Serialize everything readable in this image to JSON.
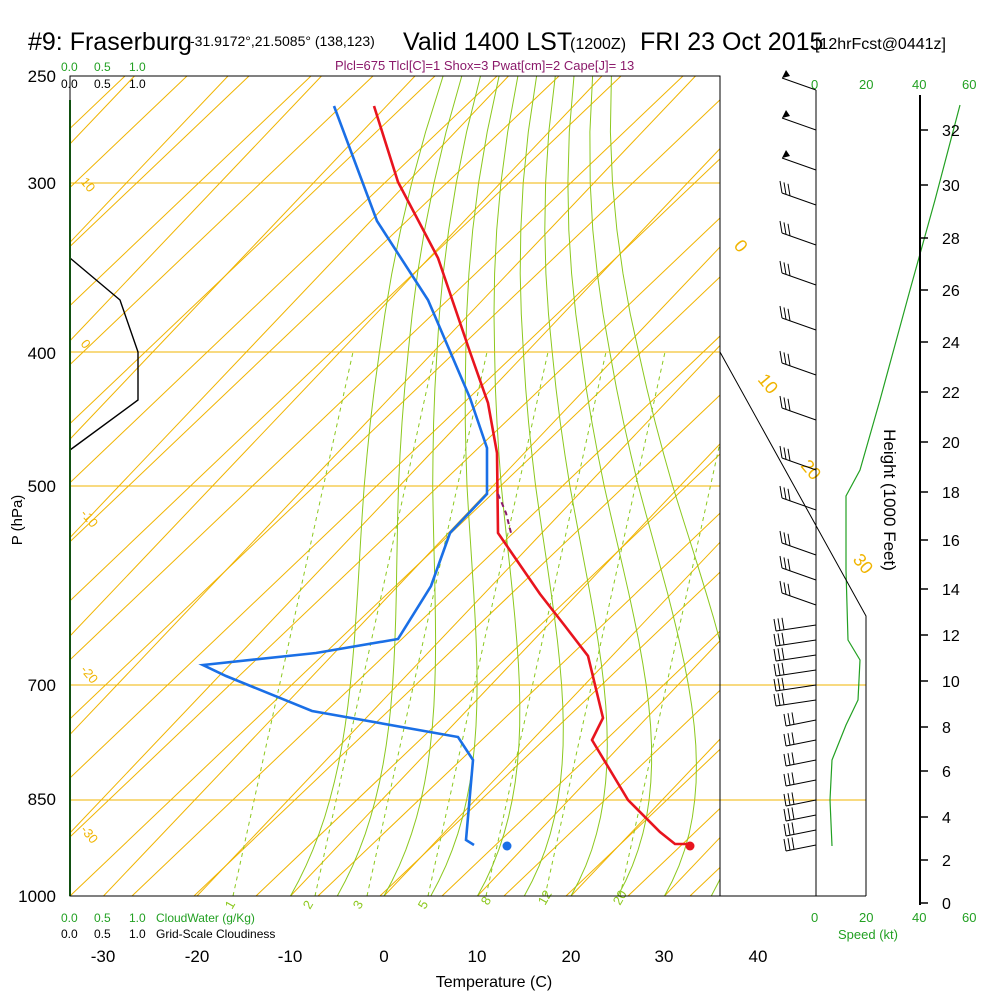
{
  "header": {
    "station": "#9: Fraserburg",
    "coords": "-31.9172°,21.5085° (138,123)",
    "valid": "Valid 1400 LST",
    "zulu": "(1200Z)",
    "date": "FRI 23 Oct 2015",
    "forecast": "[12hrFcst@0441z]",
    "indices": "Plcl=675 Tlcl[C]=1 Shox=3 Pwat[cm]=2 Cape[J]= 13"
  },
  "colors": {
    "temperature": "#e8141e",
    "dewpoint": "#1a6fe6",
    "isotherm": "#f0b400",
    "dry_adiabat": "#f0b400",
    "moist_adiabat": "#8cc81e",
    "mixing_ratio": "#8cc81e",
    "cloud": "#000000",
    "height": "#000000",
    "speed_axis": "#22a022",
    "parcel": "#8b1a6b",
    "indices_text": "#8b1a6b"
  },
  "labels": {
    "x_axis_title": "Temperature (C)",
    "y_axis_title": "P (hPa)",
    "height_axis_title": "Height (1000 Feet)",
    "cloudwater_label": "CloudWater (g/Kg)",
    "cloudiness_label": "Grid-Scale Cloudiness",
    "speed_label": "Speed (kt)",
    "cloudwater_ticks": [
      "0.0",
      "0.5",
      "1.0"
    ],
    "cloudiness_ticks": [
      "0.0",
      "0.5",
      "1.0"
    ],
    "speed_ticks": [
      "0",
      "20",
      "40",
      "60"
    ]
  },
  "chart_data": {
    "type": "skew-t",
    "x_ticks": [
      "-30",
      "-20",
      "-10",
      "0",
      "10",
      "20",
      "30",
      "40"
    ],
    "y_ticks": [
      "250",
      "300",
      "400",
      "500",
      "700",
      "850",
      "1000"
    ],
    "height_ticks": [
      "0",
      "2",
      "4",
      "6",
      "8",
      "10",
      "12",
      "14",
      "16",
      "18",
      "20",
      "22",
      "24",
      "26",
      "28",
      "30",
      "32"
    ],
    "isotherm_labels": [
      "10",
      "0",
      "-10",
      "-20",
      "-30",
      "0",
      "10",
      "20",
      "30"
    ],
    "mixing_ratio_labels": [
      "1",
      "2",
      "3",
      "5",
      "8",
      "12",
      "20"
    ],
    "temperature_profile": [
      {
        "p": 1000,
        "t": 32.9
      },
      {
        "p": 900,
        "t": 31.5
      },
      {
        "p": 850,
        "t": 26.5
      },
      {
        "p": 800,
        "t": 22.3
      },
      {
        "p": 750,
        "t": 23.5
      },
      {
        "p": 700,
        "t": 21.5
      },
      {
        "p": 650,
        "t": 18.0
      },
      {
        "p": 600,
        "t": 13.5
      },
      {
        "p": 550,
        "t": 11.5
      },
      {
        "p": 500,
        "t": 5.5
      },
      {
        "p": 450,
        "t": 1.0
      },
      {
        "p": 400,
        "t": -7.0
      },
      {
        "p": 350,
        "t": -15.0
      },
      {
        "p": 300,
        "t": -26.0
      },
      {
        "p": 250,
        "t": -37.5
      }
    ],
    "dewpoint_profile": [
      {
        "p": 1000,
        "t": 13.3
      },
      {
        "p": 900,
        "t": 8.5
      },
      {
        "p": 850,
        "t": 7.5
      },
      {
        "p": 800,
        "t": 4.5
      },
      {
        "p": 750,
        "t": -13.0
      },
      {
        "p": 700,
        "t": -25.0
      },
      {
        "p": 650,
        "t": -4.0
      },
      {
        "p": 600,
        "t": -6.5
      },
      {
        "p": 550,
        "t": -5.5
      },
      {
        "p": 500,
        "t": -6.0
      },
      {
        "p": 450,
        "t": -12.0
      },
      {
        "p": 400,
        "t": -18.0
      },
      {
        "p": 350,
        "t": -28.0
      },
      {
        "p": 300,
        "t": -41.0
      },
      {
        "p": 250,
        "t": -49.0
      }
    ],
    "surface_temperature": 32.9,
    "surface_dewpoint": 13.3
  }
}
